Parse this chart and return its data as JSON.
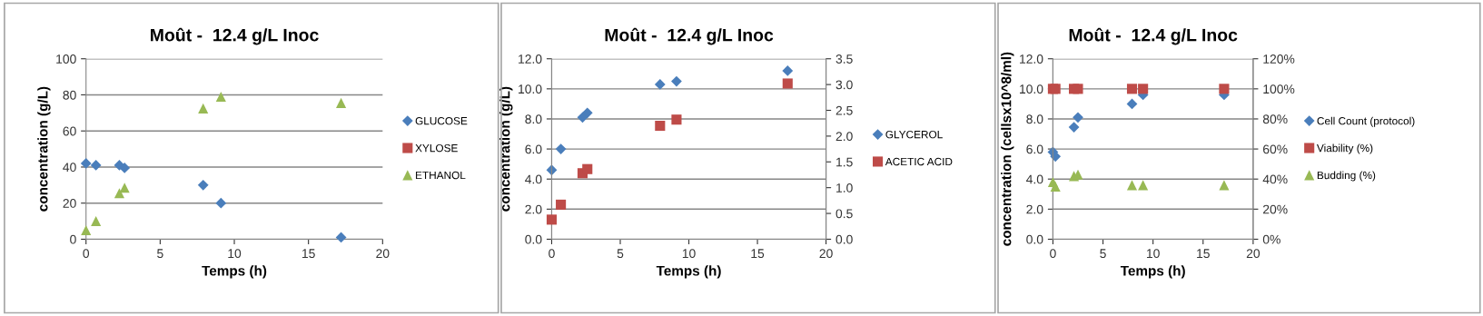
{
  "chart_data": [
    {
      "type": "scatter",
      "title": "Moût -  12.4 g/L Inoc",
      "xlabel": "Temps (h)",
      "ylabel": "concentration (g/L)",
      "xlim": [
        0,
        20
      ],
      "xticks": [
        0,
        5,
        10,
        15,
        20
      ],
      "ylim": [
        0,
        100
      ],
      "yticks": [
        0,
        20,
        40,
        60,
        80,
        100
      ],
      "grid": "y",
      "legend": "right",
      "series": [
        {
          "name": "GLUCOSE",
          "color": "#4a7ebb",
          "marker": "diamond",
          "x": [
            0,
            0.67,
            2.25,
            2.6,
            7.9,
            9.1,
            17.2
          ],
          "values": [
            42,
            41,
            41,
            39.5,
            30,
            20,
            1
          ]
        },
        {
          "name": "XYLOSE",
          "color": "#be4b48",
          "marker": "square"
        },
        {
          "name": "ETHANOL",
          "color": "#98b954",
          "marker": "triangle",
          "x": [
            0,
            0.67,
            2.25,
            2.6,
            7.9,
            9.1,
            17.2
          ],
          "values": [
            5,
            10,
            25.5,
            28.5,
            72.5,
            79,
            75.5
          ]
        }
      ]
    },
    {
      "type": "scatter",
      "title": "Moût -  12.4 g/L Inoc",
      "xlabel": "Temps (h)",
      "ylabel": "concentration (g/L)",
      "xlim": [
        0,
        20
      ],
      "xticks": [
        0,
        5,
        10,
        15,
        20
      ],
      "ylim": [
        0,
        12
      ],
      "yticks": [
        {
          "value": 0,
          "label": "0.0"
        },
        {
          "value": 2,
          "label": "2.0"
        },
        {
          "value": 4,
          "label": "4.0"
        },
        {
          "value": 6,
          "label": "6.0"
        },
        {
          "value": 8,
          "label": "8.0"
        },
        {
          "value": 10,
          "label": "10.0"
        },
        {
          "value": 12,
          "label": "12.0"
        }
      ],
      "y2lim": [
        0,
        3.5
      ],
      "y2ticks": [
        {
          "value": 0,
          "label": "0.0"
        },
        0.5,
        {
          "value": 1,
          "label": "1.0"
        },
        1.5,
        {
          "value": 2,
          "label": "2.0"
        },
        2.5,
        {
          "value": 3,
          "label": "3.0"
        },
        3.5
      ],
      "grid": "y",
      "legend": "right",
      "series": [
        {
          "name": "GLYCEROL",
          "color": "#4a7ebb",
          "marker": "diamond",
          "x": [
            0,
            0.67,
            2.25,
            2.6,
            7.9,
            9.1,
            17.2
          ],
          "values": [
            4.6,
            6.0,
            8.1,
            8.4,
            10.3,
            10.5,
            11.2
          ]
        },
        {
          "name": "ACETIC ACID",
          "color": "#be4b48",
          "marker": "square",
          "axis": "y2",
          "x": [
            0,
            0.67,
            2.25,
            2.6,
            7.9,
            9.1,
            17.2
          ],
          "values": [
            0.38,
            0.67,
            1.28,
            1.36,
            2.2,
            2.32,
            3.02
          ]
        }
      ]
    },
    {
      "type": "scatter",
      "title": "Moût -  12.4 g/L Inoc",
      "xlabel": "Temps (h)",
      "ylabel": "concentration (cellsx10^8/ml)",
      "xlim": [
        0,
        20
      ],
      "xticks": [
        0,
        5,
        10,
        15,
        20
      ],
      "ylim": [
        0,
        12
      ],
      "yticks": [
        {
          "value": 0,
          "label": "0.0"
        },
        {
          "value": 2,
          "label": "2.0"
        },
        {
          "value": 4,
          "label": "4.0"
        },
        {
          "value": 6,
          "label": "6.0"
        },
        {
          "value": 8,
          "label": "8.0"
        },
        {
          "value": 10,
          "label": "10.0"
        },
        {
          "value": 12,
          "label": "12.0"
        }
      ],
      "y2lim": [
        0,
        120
      ],
      "y2ticks": [
        {
          "value": 0,
          "label": "0%"
        },
        {
          "value": 20,
          "label": "20%"
        },
        {
          "value": 40,
          "label": "40%"
        },
        {
          "value": 60,
          "label": "60%"
        },
        {
          "value": 80,
          "label": "80%"
        },
        {
          "value": 100,
          "label": "100%"
        },
        {
          "value": 120,
          "label": "120%"
        }
      ],
      "grid": "y",
      "legend": "right",
      "series": [
        {
          "name": "Cell Count (protocol)",
          "color": "#4a7ebb",
          "marker": "diamond",
          "x": [
            0,
            0.25,
            2.1,
            2.5,
            7.9,
            9.0,
            17.1
          ],
          "values": [
            5.8,
            5.5,
            7.45,
            8.1,
            9.0,
            9.6,
            9.6
          ]
        },
        {
          "name": "Viability (%)",
          "color": "#be4b48",
          "marker": "square",
          "axis": "y2",
          "x": [
            0,
            0.25,
            2.1,
            2.5,
            7.9,
            9.0,
            17.1
          ],
          "values": [
            100,
            100,
            100,
            100,
            100,
            100,
            100
          ]
        },
        {
          "name": "Budding (%)",
          "color": "#98b954",
          "marker": "triangle",
          "axis": "y2",
          "x": [
            0,
            0.25,
            2.1,
            2.5,
            7.9,
            9.0,
            17.1
          ],
          "values": [
            38,
            35,
            42,
            43,
            36,
            36,
            36
          ]
        }
      ]
    }
  ]
}
